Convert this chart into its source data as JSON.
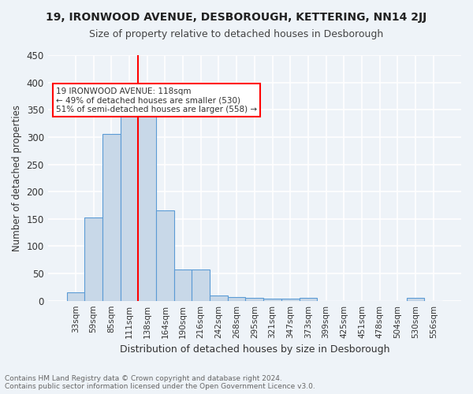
{
  "title": "19, IRONWOOD AVENUE, DESBOROUGH, KETTERING, NN14 2JJ",
  "subtitle": "Size of property relative to detached houses in Desborough",
  "xlabel": "Distribution of detached houses by size in Desborough",
  "ylabel": "Number of detached properties",
  "footer_line1": "Contains HM Land Registry data © Crown copyright and database right 2024.",
  "footer_line2": "Contains public sector information licensed under the Open Government Licence v3.0.",
  "bar_labels": [
    "33sqm",
    "59sqm",
    "85sqm",
    "111sqm",
    "138sqm",
    "164sqm",
    "190sqm",
    "216sqm",
    "242sqm",
    "268sqm",
    "295sqm",
    "321sqm",
    "347sqm",
    "373sqm",
    "399sqm",
    "425sqm",
    "451sqm",
    "478sqm",
    "504sqm",
    "530sqm",
    "556sqm"
  ],
  "bar_values": [
    15,
    152,
    305,
    340,
    340,
    165,
    57,
    57,
    10,
    7,
    5,
    4,
    4,
    5,
    0,
    0,
    0,
    0,
    0,
    5,
    0
  ],
  "bar_color": "#c8d8e8",
  "bar_edge_color": "#5b9bd5",
  "red_line_x": 4,
  "annotation_text": "19 IRONWOOD AVENUE: 118sqm\n← 49% of detached houses are smaller (530)\n51% of semi-detached houses are larger (558) →",
  "annotation_box_color": "white",
  "annotation_box_edge": "red",
  "bg_color": "#eef3f8",
  "plot_bg_color": "#eef3f8",
  "grid_color": "white",
  "ylim": [
    0,
    450
  ],
  "yticks": [
    0,
    50,
    100,
    150,
    200,
    250,
    300,
    350,
    400,
    450
  ]
}
